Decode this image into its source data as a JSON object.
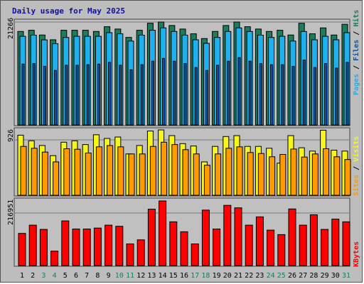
{
  "chart_data": [
    {
      "type": "bar",
      "title": "Daily usage for May 2025",
      "ymax_label": "21266",
      "categories": [
        "1",
        "2",
        "3",
        "4",
        "5",
        "6",
        "7",
        "8",
        "9",
        "10",
        "11",
        "12",
        "13",
        "14",
        "15",
        "16",
        "17",
        "18",
        "19",
        "20",
        "21",
        "22",
        "23",
        "24",
        "25",
        "26",
        "27",
        "28",
        "29",
        "30",
        "31"
      ],
      "weekend_days": [
        "3",
        "4",
        "10",
        "11",
        "17",
        "18",
        "24",
        "25",
        "31"
      ],
      "legend": [
        "Pages",
        "Files",
        "Hits"
      ],
      "colors": {
        "Hits": "#1c7d5c",
        "Files": "#1fb0ee",
        "Pages": "#1054a4"
      },
      "ylim": [
        0,
        21266
      ],
      "series": [
        {
          "name": "Hits",
          "values": [
            19320,
            19560,
            18580,
            17600,
            19560,
            19560,
            19560,
            19320,
            20300,
            19810,
            18090,
            19560,
            21020,
            21266,
            20550,
            19810,
            18830,
            17850,
            19320,
            20550,
            21266,
            20300,
            19810,
            19320,
            19560,
            18580,
            21020,
            18830,
            20050,
            18580,
            20790
          ]
        },
        {
          "name": "Files",
          "values": [
            18320,
            18560,
            17580,
            16780,
            18080,
            18320,
            18320,
            18320,
            19060,
            18830,
            17340,
            18560,
            19560,
            20050,
            19320,
            18560,
            17600,
            16870,
            18080,
            19320,
            20050,
            19320,
            18560,
            18080,
            18320,
            17340,
            19320,
            17600,
            18320,
            17600,
            19060
          ]
        },
        {
          "name": "Pages",
          "values": [
            12570,
            12690,
            12110,
            11270,
            12330,
            12330,
            12450,
            12570,
            12930,
            12330,
            11390,
            12450,
            13170,
            13740,
            13170,
            12690,
            11870,
            11270,
            12330,
            13170,
            13900,
            13170,
            12690,
            12450,
            12450,
            12110,
            13420,
            11870,
            12690,
            11750,
            12930
          ]
        }
      ]
    },
    {
      "type": "bar",
      "ymax_label": "926",
      "categories": [
        "1",
        "2",
        "3",
        "4",
        "5",
        "6",
        "7",
        "8",
        "9",
        "10",
        "11",
        "12",
        "13",
        "14",
        "15",
        "16",
        "17",
        "18",
        "19",
        "20",
        "21",
        "22",
        "23",
        "24",
        "25",
        "26",
        "27",
        "28",
        "29",
        "30",
        "31"
      ],
      "legend": [
        "Sites",
        "Visits"
      ],
      "colors": {
        "Visits": "#f6f61a",
        "Sites": "#ff9a00"
      },
      "ylim": [
        0,
        926
      ],
      "series": [
        {
          "name": "Visits",
          "values": [
            852,
            772,
            706,
            562,
            752,
            772,
            719,
            858,
            805,
            825,
            586,
            706,
            911,
            926,
            845,
            732,
            699,
            473,
            692,
            832,
            845,
            692,
            692,
            666,
            455,
            845,
            673,
            626,
            922,
            639,
            626
          ]
        },
        {
          "name": "Sites",
          "values": [
            692,
            666,
            612,
            473,
            659,
            652,
            599,
            686,
            705,
            686,
            586,
            586,
            692,
            752,
            719,
            646,
            586,
            426,
            586,
            666,
            686,
            606,
            592,
            546,
            579,
            655,
            542,
            586,
            659,
            546,
            506
          ]
        }
      ]
    },
    {
      "type": "bar",
      "ymax_label": "216951",
      "categories": [
        "1",
        "2",
        "3",
        "4",
        "5",
        "6",
        "7",
        "8",
        "9",
        "10",
        "11",
        "12",
        "13",
        "14",
        "15",
        "16",
        "17",
        "18",
        "19",
        "20",
        "21",
        "22",
        "23",
        "24",
        "25",
        "26",
        "27",
        "28",
        "29",
        "30",
        "31"
      ],
      "legend": [
        "KBytes"
      ],
      "colors": {
        "KBytes": "#ff0000"
      },
      "ylim": [
        0,
        216951
      ],
      "series": [
        {
          "name": "KBytes",
          "values": [
            108100,
            135670,
            121270,
            48470,
            149890,
            122780,
            122780,
            125810,
            135670,
            131880,
            72710,
            86350,
            189280,
            216951,
            146860,
            113400,
            72710,
            186260,
            122780,
            202160,
            193820,
            135670,
            163550,
            119000,
            103840,
            190040,
            135670,
            170370,
            121270,
            155970,
            146860
          ]
        }
      ]
    }
  ]
}
